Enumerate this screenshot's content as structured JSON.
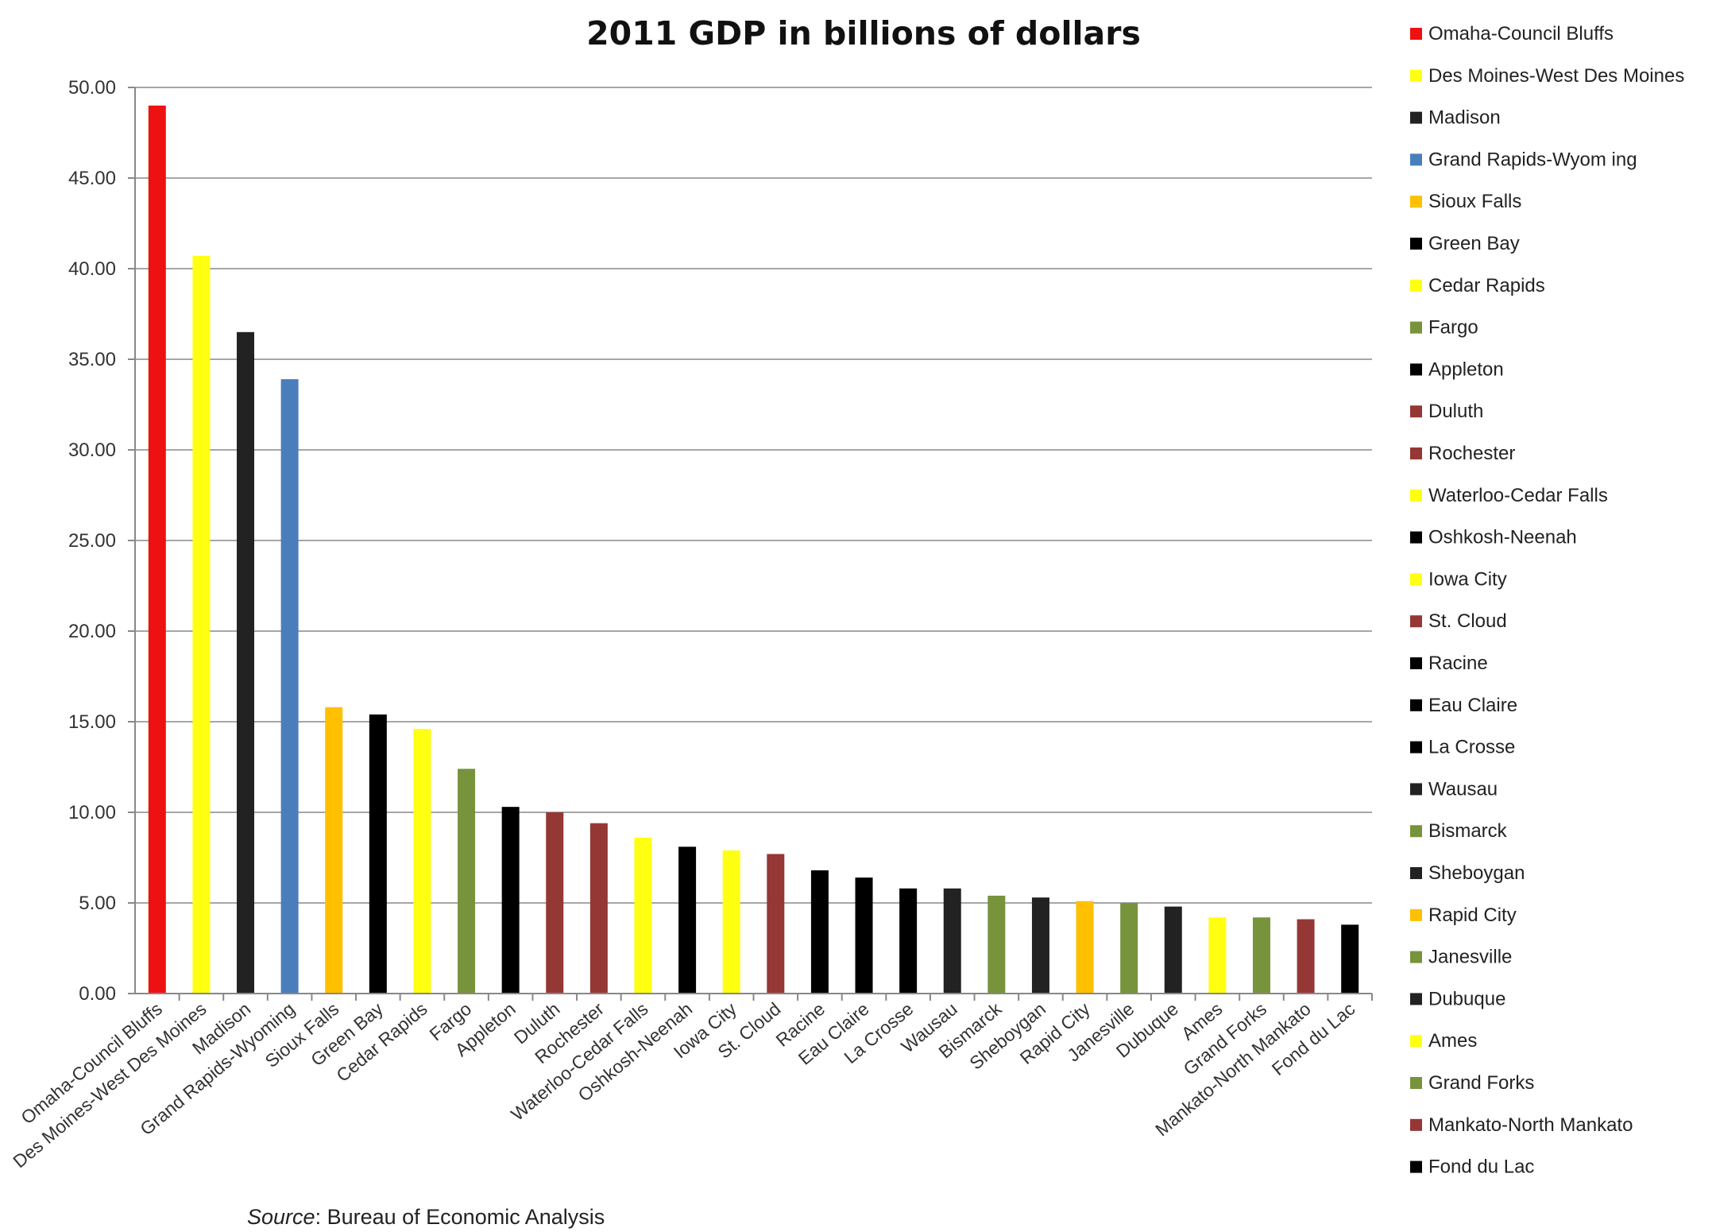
{
  "chart_data": {
    "type": "bar",
    "title": "2011 GDP in billions of dollars",
    "xlabel": "",
    "ylabel": "",
    "ylim": [
      0,
      50
    ],
    "ytick_labels": [
      "0.00",
      "5.00",
      "10.00",
      "15.00",
      "20.00",
      "25.00",
      "30.00",
      "35.00",
      "40.00",
      "45.00",
      "50.00"
    ],
    "grid": true,
    "legend_position": "right",
    "categories": [
      "Omaha-Council Bluffs",
      "Des Moines-West Des Moines",
      "Madison",
      "Grand Rapids-Wyoming",
      "Sioux Falls",
      "Green Bay",
      "Cedar Rapids",
      "Fargo",
      "Appleton",
      "Duluth",
      "Rochester",
      "Waterloo-Cedar Falls",
      "Oshkosh-Neenah",
      "Iowa City",
      "St. Cloud",
      "Racine",
      "Eau Claire",
      "La Crosse",
      "Wausau",
      "Bismarck",
      "Sheboygan",
      "Rapid City",
      "Janesville",
      "Dubuque",
      "Ames",
      "Grand Forks",
      "Mankato-North Mankato",
      "Fond du Lac"
    ],
    "legend_labels": [
      "Omaha-Council Bluffs",
      "Des Moines-West Des Moines",
      "Madison",
      "Grand Rapids-Wyom ing",
      "Sioux Falls",
      "Green Bay",
      "Cedar Rapids",
      "Fargo",
      "Appleton",
      "Duluth",
      "Rochester",
      "Waterloo-Cedar Falls",
      "Oshkosh-Neenah",
      "Iowa City",
      "St. Cloud",
      "Racine",
      "Eau Claire",
      "La Crosse",
      "Wausau",
      "Bismarck",
      "Sheboygan",
      "Rapid City",
      "Janesville",
      "Dubuque",
      "Ames",
      "Grand Forks",
      "Mankato-North Mankato",
      "Fond du Lac"
    ],
    "values": [
      49.0,
      40.7,
      36.5,
      33.9,
      15.8,
      15.4,
      14.6,
      12.4,
      10.3,
      10.0,
      9.4,
      8.6,
      8.1,
      7.9,
      7.7,
      6.8,
      6.4,
      5.8,
      5.8,
      5.4,
      5.3,
      5.1,
      5.0,
      4.8,
      4.2,
      4.2,
      4.1,
      3.8
    ],
    "colors": [
      "#ee1111",
      "#ffff11",
      "#222222",
      "#4a7ebb",
      "#ffc000",
      "#000000",
      "#ffff11",
      "#77933c",
      "#000000",
      "#953735",
      "#953735",
      "#ffff11",
      "#000000",
      "#ffff11",
      "#953735",
      "#000000",
      "#000000",
      "#000000",
      "#222222",
      "#77933c",
      "#222222",
      "#ffc000",
      "#77933c",
      "#222222",
      "#ffff11",
      "#77933c",
      "#953735",
      "#000000"
    ]
  },
  "source": {
    "prefix": "Source",
    "text": ": Bureau of Economic Analysis"
  }
}
